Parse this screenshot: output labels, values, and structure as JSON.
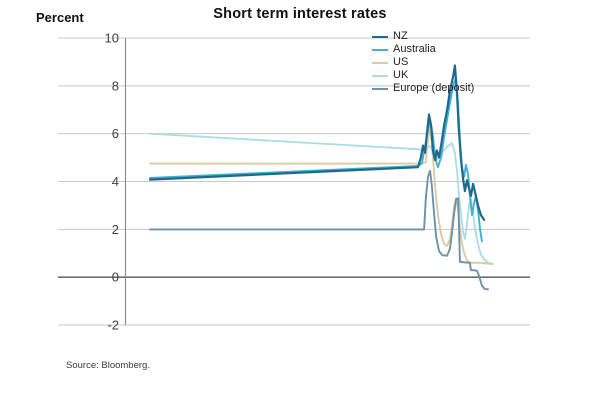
{
  "page": {
    "title": "Short term interest rates",
    "axis_label": "Percent",
    "source": "Source: Bloomberg."
  },
  "chart_data": {
    "type": "line",
    "title": "Short term interest rates",
    "ylabel": "Percent",
    "xlabel": "",
    "ylim": [
      -2,
      10
    ],
    "yticks": [
      10,
      8,
      6,
      4,
      2,
      0,
      -2
    ],
    "x_axis": {
      "labels_shown": false,
      "range": [
        0,
        100
      ]
    },
    "grid": "horizontal",
    "zero_line": true,
    "legend_position": "top-right-inside",
    "colors": {
      "grid": "#c9c9c9",
      "zero_line": "#6e6e6e",
      "axis": "#8c8c8c",
      "tick_text": "#404040"
    },
    "draw_order": [
      "UK",
      "US",
      "Australia",
      "Europe (deposit)",
      "NZ"
    ],
    "series": [
      {
        "name": "NZ",
        "color": "#1d6b8c",
        "width": 2.2,
        "points": [
          [
            0,
            4.08
          ],
          [
            75.5,
            4.6
          ],
          [
            76.3,
            5.0
          ],
          [
            76.9,
            5.5
          ],
          [
            77.5,
            5.2
          ],
          [
            78.0,
            6.0
          ],
          [
            78.6,
            6.8
          ],
          [
            79.2,
            6.3
          ],
          [
            79.7,
            5.3
          ],
          [
            80.3,
            4.9
          ],
          [
            80.8,
            5.3
          ],
          [
            81.4,
            5.0
          ],
          [
            82.0,
            5.5
          ],
          [
            82.8,
            6.3
          ],
          [
            83.7,
            7.0
          ],
          [
            84.5,
            7.8
          ],
          [
            85.4,
            8.4
          ],
          [
            85.9,
            8.85
          ],
          [
            86.5,
            7.6
          ],
          [
            87.0,
            6.2
          ],
          [
            87.6,
            4.9
          ],
          [
            88.2,
            4.1
          ],
          [
            88.7,
            3.6
          ],
          [
            89.3,
            4.05
          ],
          [
            89.9,
            3.7
          ],
          [
            90.4,
            3.4
          ],
          [
            91.0,
            3.9
          ],
          [
            91.5,
            3.6
          ],
          [
            92.4,
            3.0
          ],
          [
            93.2,
            2.6
          ],
          [
            94.1,
            2.4
          ]
        ]
      },
      {
        "name": "Australia",
        "color": "#41b1d1",
        "width": 1.9,
        "points": [
          [
            0,
            4.15
          ],
          [
            75.5,
            4.65
          ],
          [
            76.6,
            4.75
          ],
          [
            78.0,
            5.9
          ],
          [
            78.9,
            6.6
          ],
          [
            79.7,
            5.9
          ],
          [
            80.3,
            5.0
          ],
          [
            81.1,
            4.6
          ],
          [
            82.0,
            5.0
          ],
          [
            82.8,
            5.8
          ],
          [
            83.7,
            6.6
          ],
          [
            84.5,
            7.3
          ],
          [
            85.4,
            8.0
          ],
          [
            86.2,
            8.35
          ],
          [
            86.8,
            7.2
          ],
          [
            87.3,
            5.8
          ],
          [
            87.9,
            4.6
          ],
          [
            88.5,
            4.2
          ],
          [
            89.0,
            4.7
          ],
          [
            89.6,
            4.3
          ],
          [
            90.1,
            3.4
          ],
          [
            90.7,
            2.6
          ],
          [
            91.3,
            3.1
          ],
          [
            91.8,
            3.4
          ],
          [
            92.4,
            2.8
          ],
          [
            93.0,
            2.0
          ],
          [
            93.5,
            1.5
          ]
        ]
      },
      {
        "name": "US",
        "color": "#d8cba6",
        "width": 1.9,
        "points": [
          [
            0,
            4.75
          ],
          [
            75.5,
            4.75
          ],
          [
            77.7,
            4.8
          ],
          [
            78.6,
            6.3
          ],
          [
            79.4,
            5.6
          ],
          [
            80.3,
            3.8
          ],
          [
            81.1,
            2.6
          ],
          [
            82.0,
            1.8
          ],
          [
            82.8,
            1.4
          ],
          [
            83.7,
            1.3
          ],
          [
            84.5,
            1.6
          ],
          [
            85.1,
            2.2
          ],
          [
            85.6,
            2.9
          ],
          [
            86.2,
            3.3
          ],
          [
            86.8,
            2.8
          ],
          [
            87.3,
            2.1
          ],
          [
            87.9,
            1.4
          ],
          [
            88.5,
            1.0
          ],
          [
            89.3,
            0.7
          ],
          [
            90.4,
            0.6
          ],
          [
            93.0,
            0.6
          ],
          [
            96.3,
            0.55
          ]
        ]
      },
      {
        "name": "UK",
        "color": "#a9dde1",
        "width": 1.8,
        "points": [
          [
            0,
            6.0
          ],
          [
            75.5,
            5.35
          ],
          [
            77.5,
            5.3
          ],
          [
            78.3,
            5.5
          ],
          [
            79.2,
            5.4
          ],
          [
            80.0,
            5.15
          ],
          [
            80.8,
            4.9
          ],
          [
            81.7,
            5.1
          ],
          [
            82.8,
            5.3
          ],
          [
            84.0,
            5.5
          ],
          [
            85.1,
            5.6
          ],
          [
            85.9,
            5.2
          ],
          [
            86.5,
            4.4
          ],
          [
            87.0,
            3.5
          ],
          [
            87.6,
            2.6
          ],
          [
            88.2,
            1.9
          ],
          [
            88.7,
            1.6
          ],
          [
            89.3,
            2.2
          ],
          [
            89.9,
            3.0
          ],
          [
            90.4,
            3.3
          ],
          [
            91.0,
            2.7
          ],
          [
            91.5,
            2.1
          ],
          [
            92.1,
            1.6
          ],
          [
            92.7,
            1.2
          ],
          [
            93.2,
            0.95
          ],
          [
            94.1,
            0.75
          ],
          [
            95.2,
            0.6
          ],
          [
            96.6,
            0.55
          ]
        ]
      },
      {
        "name": "Europe (deposit)",
        "color": "#6b92a8",
        "width": 1.9,
        "points": [
          [
            0,
            2.0
          ],
          [
            77.2,
            2.0
          ],
          [
            77.7,
            3.3
          ],
          [
            78.3,
            4.2
          ],
          [
            78.9,
            4.45
          ],
          [
            79.4,
            3.8
          ],
          [
            80.0,
            2.7
          ],
          [
            80.6,
            1.7
          ],
          [
            81.4,
            1.1
          ],
          [
            82.3,
            0.92
          ],
          [
            83.7,
            0.9
          ],
          [
            84.5,
            1.2
          ],
          [
            85.1,
            1.9
          ],
          [
            85.6,
            2.6
          ],
          [
            86.2,
            3.25
          ],
          [
            86.8,
            3.3
          ],
          [
            87.0,
            2.5
          ],
          [
            87.3,
            0.65
          ],
          [
            88.7,
            0.62
          ],
          [
            90.1,
            0.6
          ],
          [
            90.4,
            0.3
          ],
          [
            92.1,
            0.27
          ],
          [
            92.7,
            0.05
          ],
          [
            93.5,
            -0.35
          ],
          [
            94.4,
            -0.5
          ],
          [
            95.2,
            -0.5
          ]
        ]
      }
    ]
  }
}
